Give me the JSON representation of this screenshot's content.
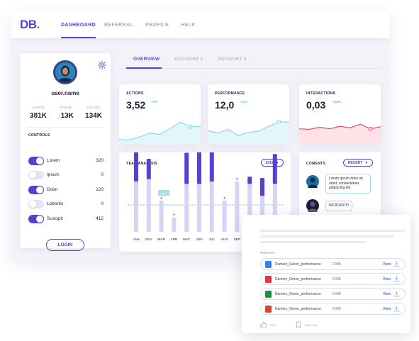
{
  "brand": {
    "logo_letters": "DB",
    "logo_dot": "."
  },
  "nav": [
    {
      "label": "DASHBOARD",
      "active": true
    },
    {
      "label": "REFERRAL",
      "active": false
    },
    {
      "label": "PROFILE",
      "active": false
    },
    {
      "label": "HELP",
      "active": false
    }
  ],
  "profile": {
    "username": "user.name",
    "avatar_icon": "user-avatar",
    "settings_icon": "gear-icon",
    "stats": [
      {
        "label": "LOREM",
        "value": "381K",
        "trend": ""
      },
      {
        "label": "IPSUM",
        "value": "13K",
        "trend": "up"
      },
      {
        "label": "DOLOR",
        "value": "134K",
        "trend": ""
      }
    ],
    "controls_title": "CONTROLS",
    "controls": [
      {
        "name": "Lorem",
        "value": "320",
        "on": true
      },
      {
        "name": "Ipsum",
        "value": "0",
        "on": false
      },
      {
        "name": "Dolor",
        "value": "120",
        "on": true
      },
      {
        "name": "Lobortis",
        "value": "0",
        "on": false
      },
      {
        "name": "Suscipit",
        "value": "412",
        "on": true
      }
    ],
    "login_label": "LOGIN"
  },
  "subtabs": [
    {
      "label": "OVERVIEW",
      "active": true
    },
    {
      "label": "ACCOUNT 1",
      "active": false
    },
    {
      "label": "ACCOUNT 2",
      "active": false
    }
  ],
  "kpis": [
    {
      "title": "ACTIONS",
      "value": "3,52",
      "delta": "+5%",
      "delta_color": "#2fb7c9",
      "line_color": "#7ccfe0",
      "fill_color": "#e3f6fa",
      "points": [
        0.2,
        0.18,
        0.3,
        0.45,
        0.4,
        0.62,
        0.88,
        0.7,
        0.72
      ],
      "marker_index": 7
    },
    {
      "title": "PERFORMANCE",
      "value": "12,0",
      "delta": "+21%",
      "delta_color": "#2fb7c9",
      "line_color": "#7ccfe0",
      "fill_color": "#e3f6fa",
      "points": [
        0.55,
        0.45,
        0.6,
        0.35,
        0.48,
        0.52,
        0.72,
        0.9,
        0.88
      ],
      "marker_index": 7
    },
    {
      "title": "INTERACTIONS",
      "value": "0,03",
      "delta": "+12%",
      "delta_color": "#e0334f",
      "line_color": "#e0334f",
      "fill_color": "#fde3e8",
      "points": [
        0.62,
        0.6,
        0.68,
        0.62,
        0.72,
        0.66,
        0.8,
        0.62,
        0.7
      ],
      "marker_index": 7
    }
  ],
  "year_analysis": {
    "title": "YEAR ANALYSIS",
    "year_label": "2019",
    "tooltip": "9334",
    "months": [
      "JAN",
      "FEV",
      "MAR",
      "APR",
      "MAY",
      "JUN",
      "JUL",
      "AUG",
      "SEP",
      "OCT",
      "NOV",
      "DEZ"
    ]
  },
  "chart_data": {
    "type": "bar",
    "title": "YEAR ANALYSIS",
    "categories": [
      "JAN",
      "FEV",
      "MAR",
      "APR",
      "MAY",
      "JUN",
      "JUL",
      "AUG",
      "SEP",
      "OCT",
      "NOV",
      "DEZ"
    ],
    "series": [
      {
        "values": [
          30,
          17,
          0,
          0,
          26,
          39,
          28,
          0,
          0,
          6,
          15,
          25
        ],
        "color": "#5a3fd6"
      },
      {
        "values": [
          42,
          44,
          26,
          12,
          40,
          40,
          42,
          26,
          42,
          40,
          30,
          40
        ],
        "color": "#d8d3f3"
      }
    ],
    "markers": [
      {
        "category": "MAR",
        "kind": "up",
        "color": "#e0334f"
      },
      {
        "category": "APR",
        "kind": "down",
        "color": "#e0334f"
      },
      {
        "category": "AUG",
        "kind": "up",
        "color": "#e0334f"
      },
      {
        "category": "SEP",
        "kind": "up",
        "color": "#5a3fd6"
      }
    ],
    "reference_line_color": "#2fb7c9",
    "grid": false
  },
  "comments": {
    "title": "COMENTS",
    "filter_label": "RECENT",
    "items": [
      {
        "text_lines": [
          "Lorem ipsum dolor sit",
          "amet, consectetuer",
          "adipiscing elit."
        ],
        "avatar_color": "#1d6fa3"
      },
      {
        "text_lines": [
          "INCIDUNTI!!"
        ],
        "avatar_color": "#1d1d35"
      }
    ]
  },
  "downloads": {
    "reference_label": "Reference",
    "files": [
      {
        "name": "Damien_Green_performance",
        "size": "2 MB",
        "view_label": "View",
        "icon": "doc-icon",
        "icon_color": "#3c7fe0"
      },
      {
        "name": "Damien_Green_performance",
        "size": "2 MB",
        "view_label": "View",
        "icon": "pdf-icon",
        "icon_color": "#e0334f"
      },
      {
        "name": "Damien_Green_performance",
        "size": "2 MB",
        "view_label": "View",
        "icon": "sheet-icon",
        "icon_color": "#1e8e4b"
      },
      {
        "name": "Damien_Green_performance",
        "size": "2 MB",
        "view_label": "View",
        "icon": "slides-icon",
        "icon_color": "#d5482c"
      }
    ],
    "footer": [
      {
        "label": "Profi",
        "icon": "thumbs-up-icon"
      },
      {
        "label": "Best Chat",
        "icon": "bookmark-icon"
      }
    ]
  }
}
